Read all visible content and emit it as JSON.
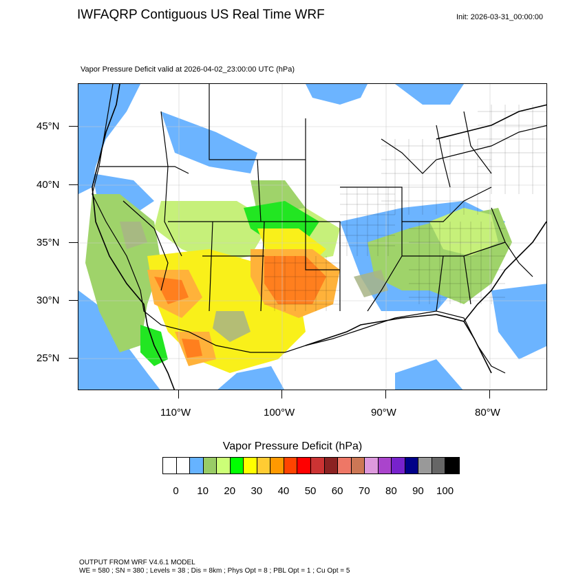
{
  "header": {
    "title": "IWFAQRP Contiguous US Real Time WRF",
    "init": "Init: 2026-03-31_00:00:00",
    "subtitle": "Vapor Pressure Deficit valid at 2026-04-02_23:00:00 UTC   (hPa)"
  },
  "map": {
    "region": "Contiguous US",
    "lat_labels": [
      "45°N",
      "40°N",
      "35°N",
      "30°N",
      "25°N"
    ],
    "lon_labels": [
      "110°W",
      "100°W",
      "90°W",
      "80°W"
    ],
    "palette": {
      "water_blue": "#6cb4ff",
      "pale_green": "#9fd36a",
      "light_green": "#c6f07a",
      "green": "#22e622",
      "yellow": "#f9f01a",
      "orange": "#ffb23a",
      "deep_orange": "#ff7f1e",
      "red_orange": "#ff4010",
      "gray_green": "#a8b486"
    }
  },
  "colorbar": {
    "title": "Vapor Pressure Deficit  (hPa)",
    "colors": [
      "#ffffff",
      "#ffffff",
      "#66b3ff",
      "#99cc66",
      "#ccff77",
      "#00ff00",
      "#ffff00",
      "#ffcc33",
      "#ff9900",
      "#ff4400",
      "#ff0000",
      "#cc3333",
      "#8b2222",
      "#ee7766",
      "#cc7755",
      "#dd99dd",
      "#aa44cc",
      "#7722cc",
      "#000088",
      "#999999",
      "#666666",
      "#000000"
    ],
    "labels": [
      "0",
      "10",
      "20",
      "30",
      "40",
      "50",
      "60",
      "70",
      "80",
      "90",
      "100"
    ]
  },
  "footer": {
    "line1": "OUTPUT FROM WRF V4.6.1 MODEL",
    "line2": "WE = 580 ; SN = 380 ; Levels = 38 ; Dis = 8km ; Phys Opt = 8 ; PBL Opt = 1 ; Cu Opt = 5"
  }
}
